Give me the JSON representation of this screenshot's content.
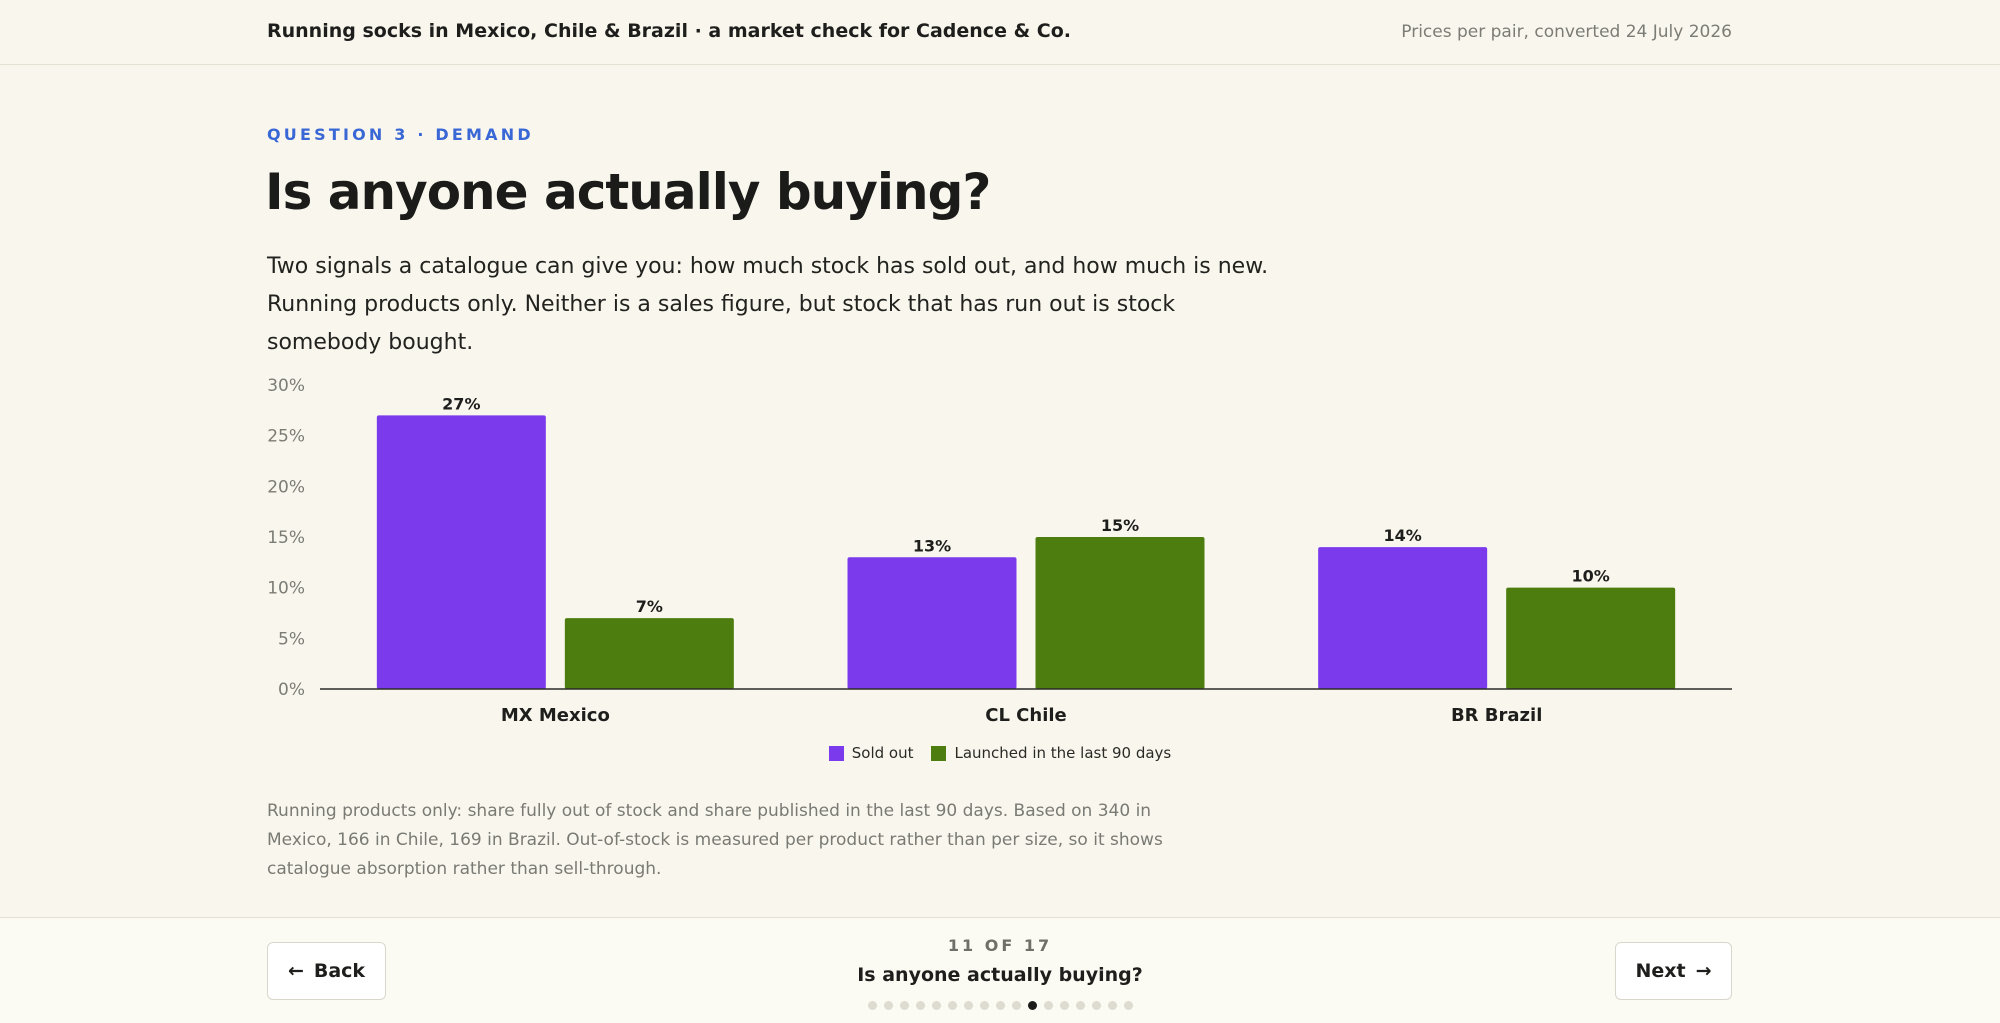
{
  "header": {
    "title": "Running socks in Mexico, Chile & Brazil · a market check for Cadence & Co.",
    "meta": "Prices per pair, converted 24 July 2026"
  },
  "section": {
    "eyebrow": "QUESTION 3 · DEMAND",
    "heading": "Is anyone actually buying?",
    "intro": "Two signals a catalogue can give you: how much stock has sold out, and how much is new. Running products only. Neither is a sales figure, but stock that has run out is stock somebody bought."
  },
  "chart_data": {
    "type": "bar",
    "categories": [
      "MX  Mexico",
      "CL  Chile",
      "BR  Brazil"
    ],
    "series": [
      {
        "name": "Sold out",
        "values": [
          27,
          13,
          14
        ],
        "color": "#7c3aed"
      },
      {
        "name": "Launched in the last 90 days",
        "values": [
          7,
          15,
          10
        ],
        "color": "#4d7c0f"
      }
    ],
    "value_suffix": "%",
    "ylim": [
      0,
      30
    ],
    "yticks": [
      0,
      5,
      10,
      15,
      20,
      25,
      30
    ],
    "ytick_labels": [
      "0%",
      "5%",
      "10%",
      "15%",
      "20%",
      "25%",
      "30%"
    ],
    "grid": false,
    "legend_position": "bottom-center"
  },
  "footnote": "Running products only: share fully out of stock and share published in the last 90 days. Based on 340 in Mexico, 166 in Chile, 169 in Brazil. Out-of-stock is measured per product rather than per size, so it shows catalogue absorption rather than sell-through.",
  "footer": {
    "back_label": "Back",
    "back_icon": "arrow-left-icon",
    "next_label": "Next",
    "next_icon": "arrow-right-icon",
    "progress_text": "11 OF 17",
    "progress_title": "Is anyone actually buying?",
    "current_step": 11,
    "total_steps": 17
  }
}
